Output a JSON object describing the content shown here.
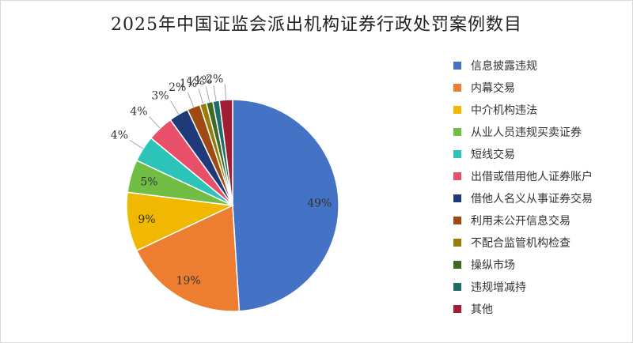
{
  "chart_data": {
    "type": "pie",
    "title": "2025年中国证监会派出机构证券行政处罚案例数目",
    "legend_position": "right",
    "slices": [
      {
        "label": "信息披露违规",
        "value": 49,
        "color": "#4472C4"
      },
      {
        "label": "内幕交易",
        "value": 19,
        "color": "#ED7D31"
      },
      {
        "label": "中介机构违法",
        "value": 9,
        "color": "#F0B800"
      },
      {
        "label": "从业人员违规买卖证券",
        "value": 5,
        "color": "#72BE44"
      },
      {
        "label": "短线交易",
        "value": 4,
        "color": "#2CC3B8"
      },
      {
        "label": "出借或借用他人证券账户",
        "value": 4,
        "color": "#E8506A"
      },
      {
        "label": "借他人名义从事证券交易",
        "value": 3,
        "color": "#1F3A78"
      },
      {
        "label": "利用未公开信息交易",
        "value": 2,
        "color": "#9E4A12"
      },
      {
        "label": "不配合监管机构检查",
        "value": 1,
        "color": "#987C0C"
      },
      {
        "label": "操纵市场",
        "value": 1,
        "color": "#3E6B24"
      },
      {
        "label": "违规增减持",
        "value": 1,
        "color": "#1E6E68"
      },
      {
        "label": "其他",
        "value": 2,
        "color": "#A11D33"
      }
    ],
    "data_label_suffix": "%"
  }
}
